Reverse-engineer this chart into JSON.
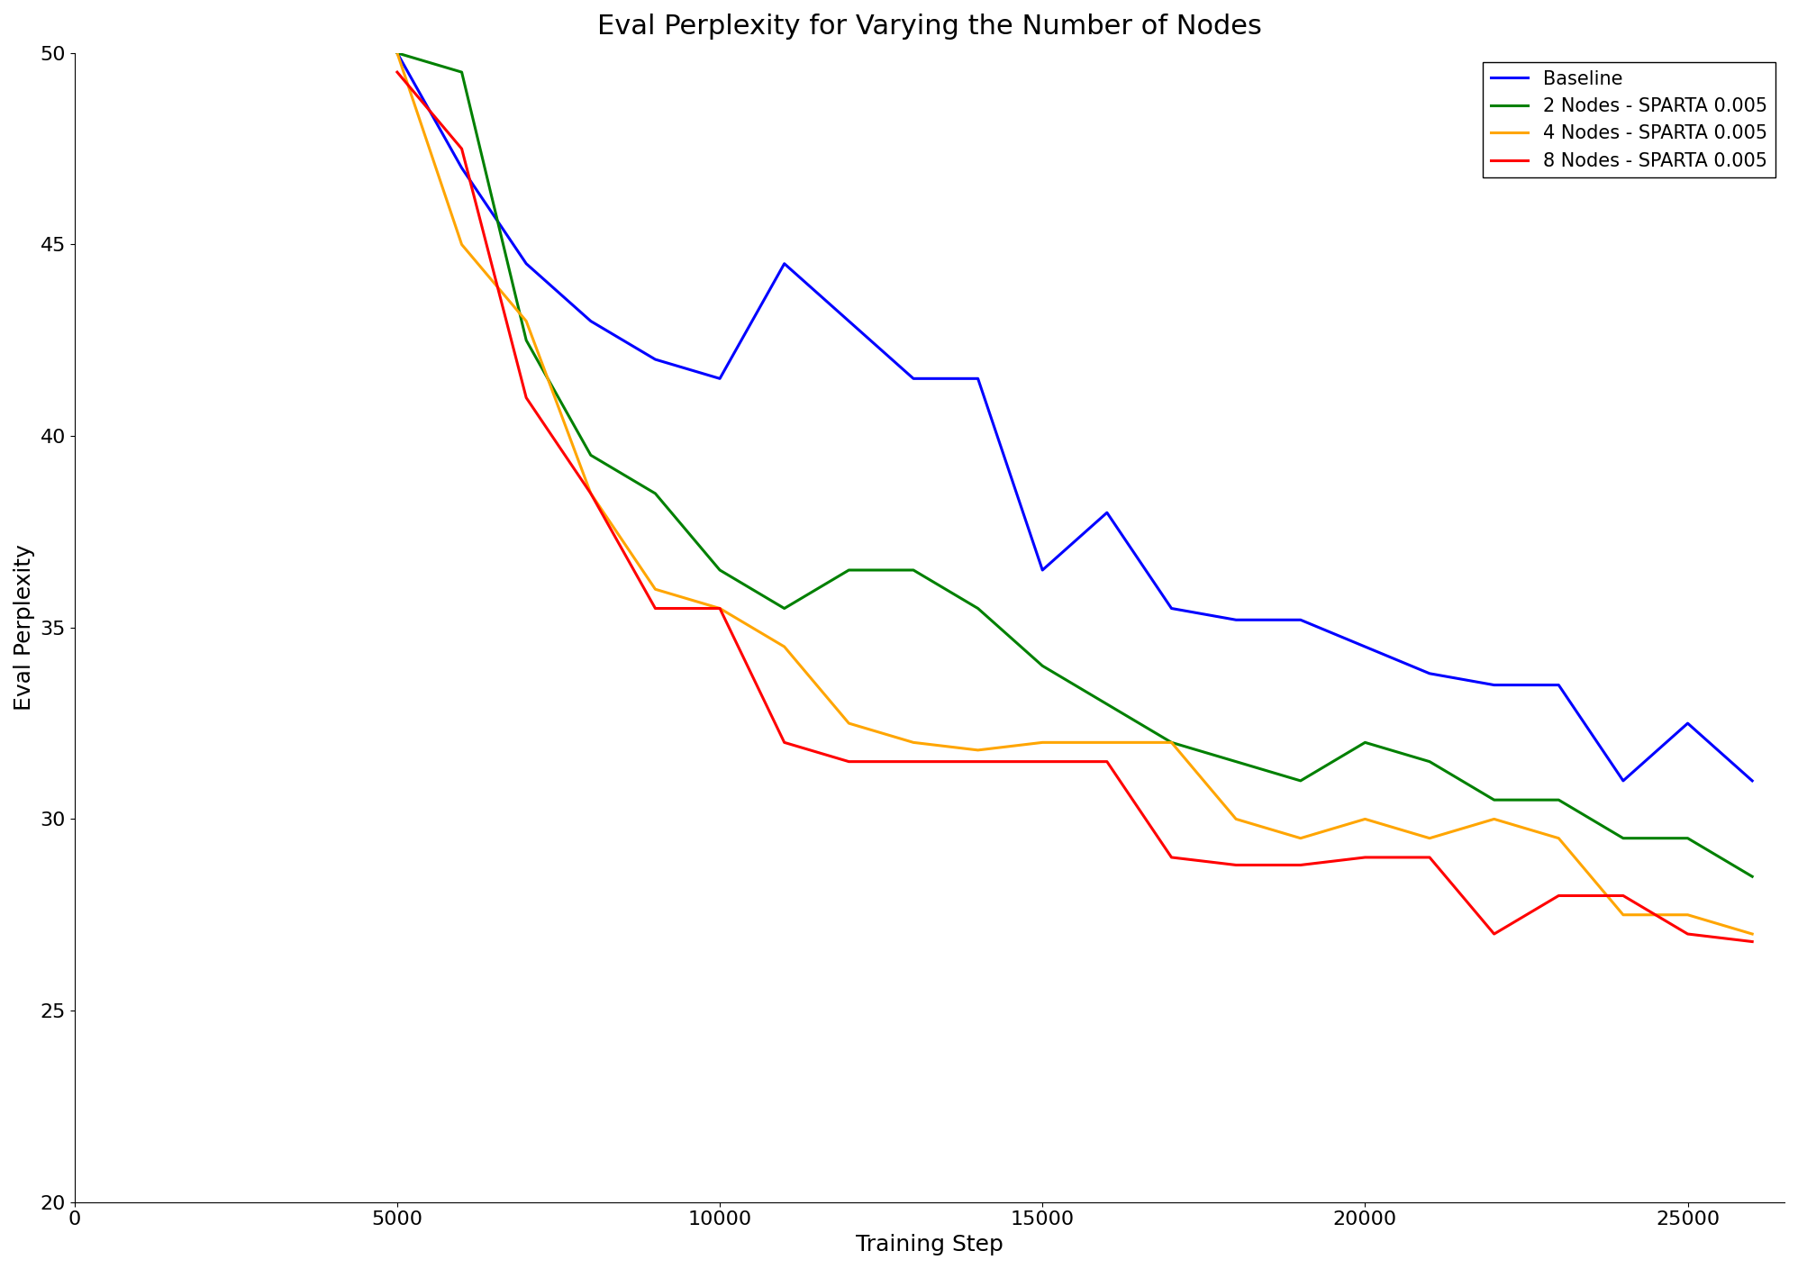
{
  "title": "Eval Perplexity for Varying the Number of Nodes",
  "xlabel": "Training Step",
  "ylabel": "Eval Perplexity",
  "xlim": [
    0,
    26500
  ],
  "ylim": [
    20,
    50
  ],
  "yticks": [
    20,
    25,
    30,
    35,
    40,
    45,
    50
  ],
  "xticks": [
    0,
    5000,
    10000,
    15000,
    20000,
    25000
  ],
  "background_color": "#ffffff",
  "title_fontsize": 22,
  "axis_label_fontsize": 18,
  "tick_fontsize": 16,
  "legend_fontsize": 15,
  "linewidth": 2.2,
  "series": [
    {
      "label": "Baseline",
      "color": "#0000ff",
      "x": [
        5000,
        6000,
        7000,
        8000,
        9000,
        10000,
        11000,
        12000,
        13000,
        14000,
        15000,
        16000,
        17000,
        18000,
        19000,
        20000,
        21000,
        22000,
        23000,
        24000,
        25000,
        26000
      ],
      "y": [
        50.0,
        47.0,
        44.5,
        43.0,
        42.0,
        41.5,
        44.5,
        43.0,
        41.5,
        41.5,
        36.5,
        38.0,
        35.5,
        35.2,
        35.2,
        34.5,
        33.8,
        33.5,
        33.5,
        31.0,
        32.5,
        31.0
      ]
    },
    {
      "label": "2 Nodes - SPARTA 0.005",
      "color": "#008000",
      "x": [
        5000,
        6000,
        7000,
        8000,
        9000,
        10000,
        11000,
        12000,
        13000,
        14000,
        15000,
        16000,
        17000,
        18000,
        19000,
        20000,
        21000,
        22000,
        23000,
        24000,
        25000,
        26000
      ],
      "y": [
        50.0,
        49.5,
        42.5,
        39.5,
        38.5,
        36.5,
        35.5,
        36.5,
        36.5,
        35.5,
        34.0,
        33.0,
        32.0,
        31.5,
        31.0,
        32.0,
        31.5,
        30.5,
        30.5,
        29.5,
        29.5,
        28.5
      ]
    },
    {
      "label": "4 Nodes - SPARTA 0.005",
      "color": "#ffa500",
      "x": [
        5000,
        6000,
        7000,
        8000,
        9000,
        10000,
        11000,
        12000,
        13000,
        14000,
        15000,
        16000,
        17000,
        18000,
        19000,
        20000,
        21000,
        22000,
        23000,
        24000,
        25000,
        26000
      ],
      "y": [
        50.0,
        45.0,
        43.0,
        38.5,
        36.0,
        35.5,
        34.5,
        32.5,
        32.0,
        31.8,
        32.0,
        32.0,
        32.0,
        30.0,
        29.5,
        30.0,
        29.5,
        30.0,
        29.5,
        27.5,
        27.5,
        27.0
      ]
    },
    {
      "label": "8 Nodes - SPARTA 0.005",
      "color": "#ff0000",
      "x": [
        5000,
        6000,
        7000,
        8000,
        9000,
        10000,
        11000,
        12000,
        13000,
        14000,
        15000,
        16000,
        17000,
        18000,
        19000,
        20000,
        21000,
        22000,
        23000,
        24000,
        25000,
        26000
      ],
      "y": [
        49.5,
        47.5,
        41.0,
        38.5,
        35.5,
        35.5,
        32.0,
        31.5,
        31.5,
        31.5,
        31.5,
        31.5,
        29.0,
        28.8,
        28.8,
        29.0,
        29.0,
        27.0,
        28.0,
        28.0,
        27.0,
        26.8
      ]
    }
  ]
}
